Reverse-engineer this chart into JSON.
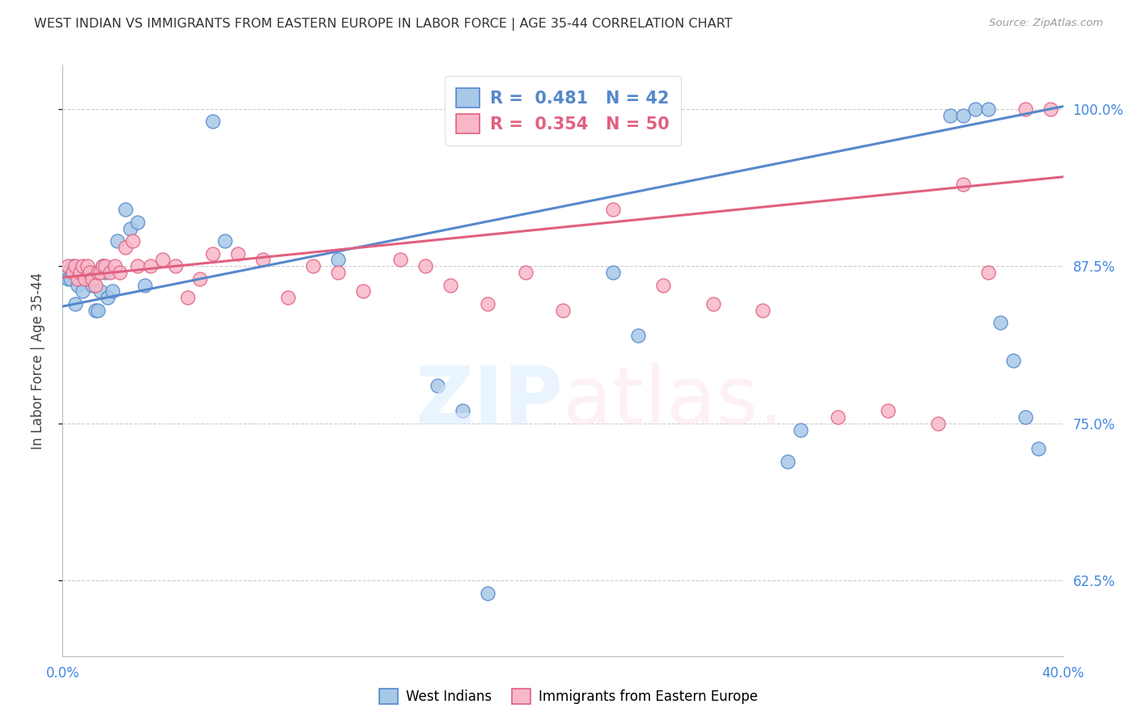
{
  "title": "WEST INDIAN VS IMMIGRANTS FROM EASTERN EUROPE IN LABOR FORCE | AGE 35-44 CORRELATION CHART",
  "source": "Source: ZipAtlas.com",
  "ylabel": "In Labor Force | Age 35-44",
  "yticks": [
    0.625,
    0.75,
    0.875,
    1.0
  ],
  "ytick_labels": [
    "62.5%",
    "75.0%",
    "87.5%",
    "100.0%"
  ],
  "xlim": [
    0.0,
    0.4
  ],
  "ylim": [
    0.565,
    1.035
  ],
  "blue_label": "West Indians",
  "pink_label": "Immigrants from Eastern Europe",
  "blue_R": "0.481",
  "blue_N": "42",
  "pink_R": "0.354",
  "pink_N": "50",
  "blue_color": "#a8c8e8",
  "blue_edge_color": "#5588cc",
  "pink_color": "#f8b8c8",
  "pink_edge_color": "#e06080",
  "background_color": "#ffffff",
  "grid_color": "#cccccc",
  "axis_color": "#bbbbbb",
  "title_color": "#333333",
  "tick_color": "#4488dd",
  "blue_scatter_x": [
    0.001,
    0.002,
    0.003,
    0.004,
    0.005,
    0.006,
    0.007,
    0.008,
    0.009,
    0.01,
    0.011,
    0.012,
    0.013,
    0.014,
    0.015,
    0.016,
    0.017,
    0.018,
    0.02,
    0.022,
    0.025,
    0.027,
    0.03,
    0.033,
    0.06,
    0.065,
    0.11,
    0.15,
    0.16,
    0.17,
    0.22,
    0.23,
    0.29,
    0.295,
    0.355,
    0.36,
    0.365,
    0.37,
    0.375,
    0.38,
    0.385,
    0.39
  ],
  "blue_scatter_y": [
    0.87,
    0.865,
    0.865,
    0.875,
    0.845,
    0.86,
    0.87,
    0.855,
    0.87,
    0.865,
    0.865,
    0.86,
    0.84,
    0.84,
    0.855,
    0.875,
    0.87,
    0.85,
    0.855,
    0.895,
    0.92,
    0.905,
    0.91,
    0.86,
    0.99,
    0.895,
    0.88,
    0.78,
    0.76,
    0.615,
    0.87,
    0.82,
    0.72,
    0.745,
    0.995,
    0.995,
    1.0,
    1.0,
    0.83,
    0.8,
    0.755,
    0.73
  ],
  "pink_scatter_x": [
    0.002,
    0.004,
    0.005,
    0.006,
    0.007,
    0.008,
    0.009,
    0.01,
    0.011,
    0.012,
    0.013,
    0.014,
    0.015,
    0.016,
    0.017,
    0.019,
    0.021,
    0.023,
    0.025,
    0.028,
    0.03,
    0.035,
    0.04,
    0.045,
    0.05,
    0.055,
    0.06,
    0.07,
    0.08,
    0.09,
    0.1,
    0.11,
    0.12,
    0.135,
    0.145,
    0.155,
    0.17,
    0.185,
    0.2,
    0.22,
    0.24,
    0.26,
    0.28,
    0.31,
    0.33,
    0.35,
    0.36,
    0.37,
    0.385,
    0.395
  ],
  "pink_scatter_y": [
    0.875,
    0.87,
    0.875,
    0.865,
    0.87,
    0.875,
    0.865,
    0.875,
    0.87,
    0.865,
    0.86,
    0.87,
    0.87,
    0.875,
    0.875,
    0.87,
    0.875,
    0.87,
    0.89,
    0.895,
    0.875,
    0.875,
    0.88,
    0.875,
    0.85,
    0.865,
    0.885,
    0.885,
    0.88,
    0.85,
    0.875,
    0.87,
    0.855,
    0.88,
    0.875,
    0.86,
    0.845,
    0.87,
    0.84,
    0.92,
    0.86,
    0.845,
    0.84,
    0.755,
    0.76,
    0.75,
    0.94,
    0.87,
    1.0,
    1.0
  ],
  "blue_trendline_x": [
    0.0,
    0.4
  ],
  "blue_trendline_y": [
    0.843,
    1.002
  ],
  "pink_trendline_x": [
    0.0,
    0.4
  ],
  "pink_trendline_y": [
    0.866,
    0.946
  ]
}
